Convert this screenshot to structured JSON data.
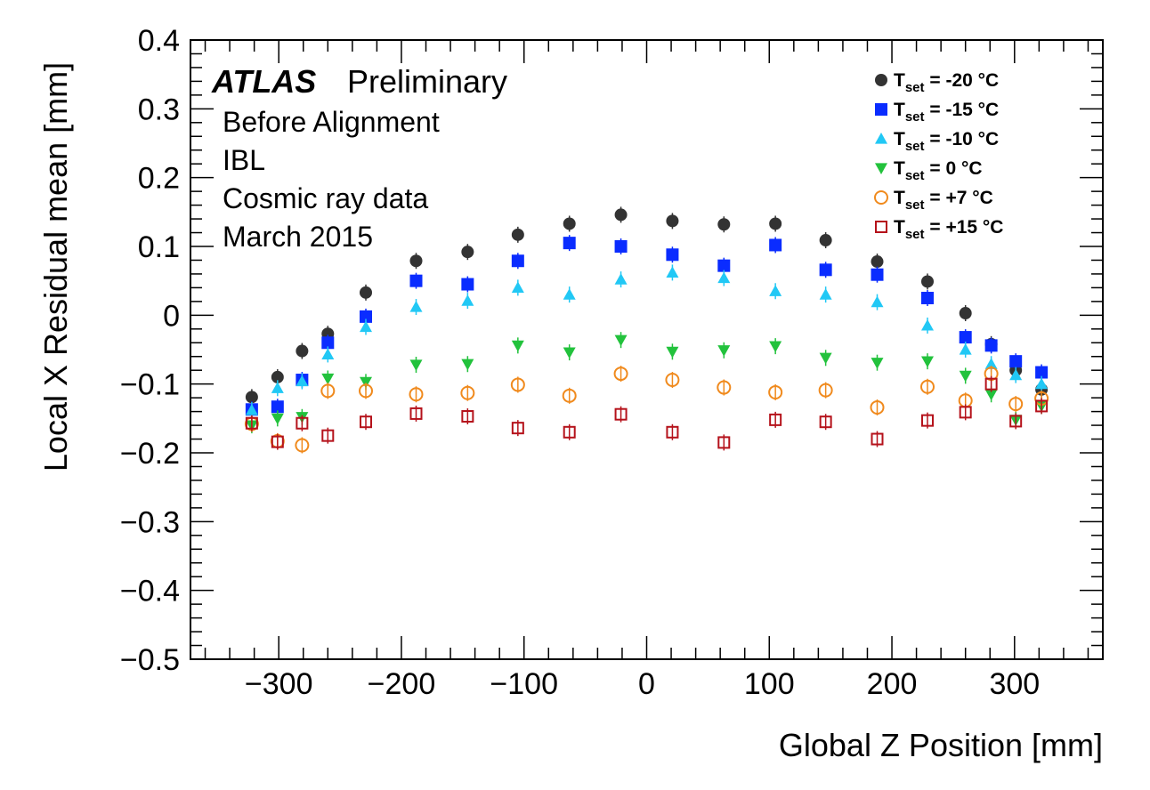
{
  "chart_data": {
    "type": "scatter",
    "xlabel": "Global Z Position [mm]",
    "ylabel": "Local X Residual mean [mm]",
    "xlim": [
      -372,
      372
    ],
    "ylim": [
      -0.5,
      0.4
    ],
    "x_ticks": [
      -300,
      -200,
      -100,
      0,
      100,
      200,
      300
    ],
    "x_tick_labels": [
      "−300",
      "−200",
      "−100",
      "0",
      "100",
      "200",
      "300"
    ],
    "y_ticks": [
      0.4,
      0.3,
      0.2,
      0.1,
      0,
      -0.1,
      -0.2,
      -0.3,
      -0.4,
      -0.5
    ],
    "y_tick_labels": [
      "0.4",
      "0.3",
      "0.2",
      "0.1",
      "0",
      "−0.1",
      "−0.2",
      "−0.3",
      "−0.4",
      "−0.5"
    ],
    "grid": false,
    "legend_position": "top-right",
    "annotations": {
      "atlas": "ATLAS",
      "preliminary": "Preliminary",
      "lines": [
        "Before Alignment",
        "IBL",
        "Cosmic ray data",
        "March 2015"
      ]
    },
    "x": [
      -322,
      -301,
      -281,
      -260,
      -229,
      -188,
      -146,
      -105,
      -63,
      -21,
      21,
      63,
      105,
      146,
      188,
      229,
      260,
      281,
      301,
      322
    ],
    "series": [
      {
        "legend_main": "T",
        "legend_sub": "set",
        "legend_value": " = -20  °C",
        "marker": "circle-filled",
        "color": "#333333",
        "values": [
          -0.119,
          -0.09,
          -0.052,
          -0.027,
          0.033,
          0.079,
          0.092,
          0.117,
          0.133,
          0.146,
          0.137,
          0.132,
          0.133,
          0.109,
          0.078,
          0.049,
          0.003,
          -0.042,
          -0.08,
          -0.108
        ]
      },
      {
        "legend_main": "T",
        "legend_sub": "set",
        "legend_value": " = -15  °C",
        "marker": "square-filled",
        "color": "#0a2cff",
        "values": [
          -0.137,
          -0.133,
          -0.094,
          -0.04,
          -0.002,
          0.05,
          0.045,
          0.079,
          0.105,
          0.1,
          0.088,
          0.072,
          0.102,
          0.066,
          0.059,
          0.025,
          -0.032,
          -0.044,
          -0.067,
          -0.083
        ]
      },
      {
        "legend_main": "T",
        "legend_sub": "set",
        "legend_value": " = -10  °C",
        "marker": "triangle-up-filled",
        "color": "#21c8f5",
        "values": [
          -0.138,
          -0.106,
          -0.096,
          -0.057,
          -0.017,
          0.012,
          0.021,
          0.04,
          0.03,
          0.052,
          0.062,
          0.054,
          0.035,
          0.03,
          0.019,
          -0.015,
          -0.05,
          -0.071,
          -0.087,
          -0.1
        ]
      },
      {
        "legend_main": "T",
        "legend_sub": "set",
        "legend_value": " = 0  °C",
        "marker": "triangle-down-filled",
        "color": "#22c23c",
        "values": [
          -0.16,
          -0.15,
          -0.148,
          -0.092,
          -0.097,
          -0.072,
          -0.071,
          -0.044,
          -0.054,
          -0.036,
          -0.053,
          -0.051,
          -0.045,
          -0.062,
          -0.069,
          -0.067,
          -0.088,
          -0.115,
          -0.152,
          -0.132
        ]
      },
      {
        "legend_main": "T",
        "legend_sub": "set",
        "legend_value": " = +7  °C",
        "marker": "circle-open",
        "color": "#f08a1d",
        "values": [
          -0.158,
          -0.183,
          -0.189,
          -0.11,
          -0.11,
          -0.115,
          -0.113,
          -0.101,
          -0.117,
          -0.085,
          -0.094,
          -0.105,
          -0.112,
          -0.109,
          -0.134,
          -0.104,
          -0.124,
          -0.085,
          -0.129,
          -0.121
        ]
      },
      {
        "legend_main": "T",
        "legend_sub": "set",
        "legend_value": " = +15  °C",
        "marker": "square-open",
        "color": "#b5121b",
        "values": [
          -0.157,
          -0.184,
          -0.157,
          -0.175,
          -0.155,
          -0.143,
          -0.147,
          -0.164,
          -0.17,
          -0.144,
          -0.17,
          -0.185,
          -0.152,
          -0.155,
          -0.18,
          -0.153,
          -0.141,
          -0.1,
          -0.154,
          -0.132
        ]
      }
    ]
  }
}
